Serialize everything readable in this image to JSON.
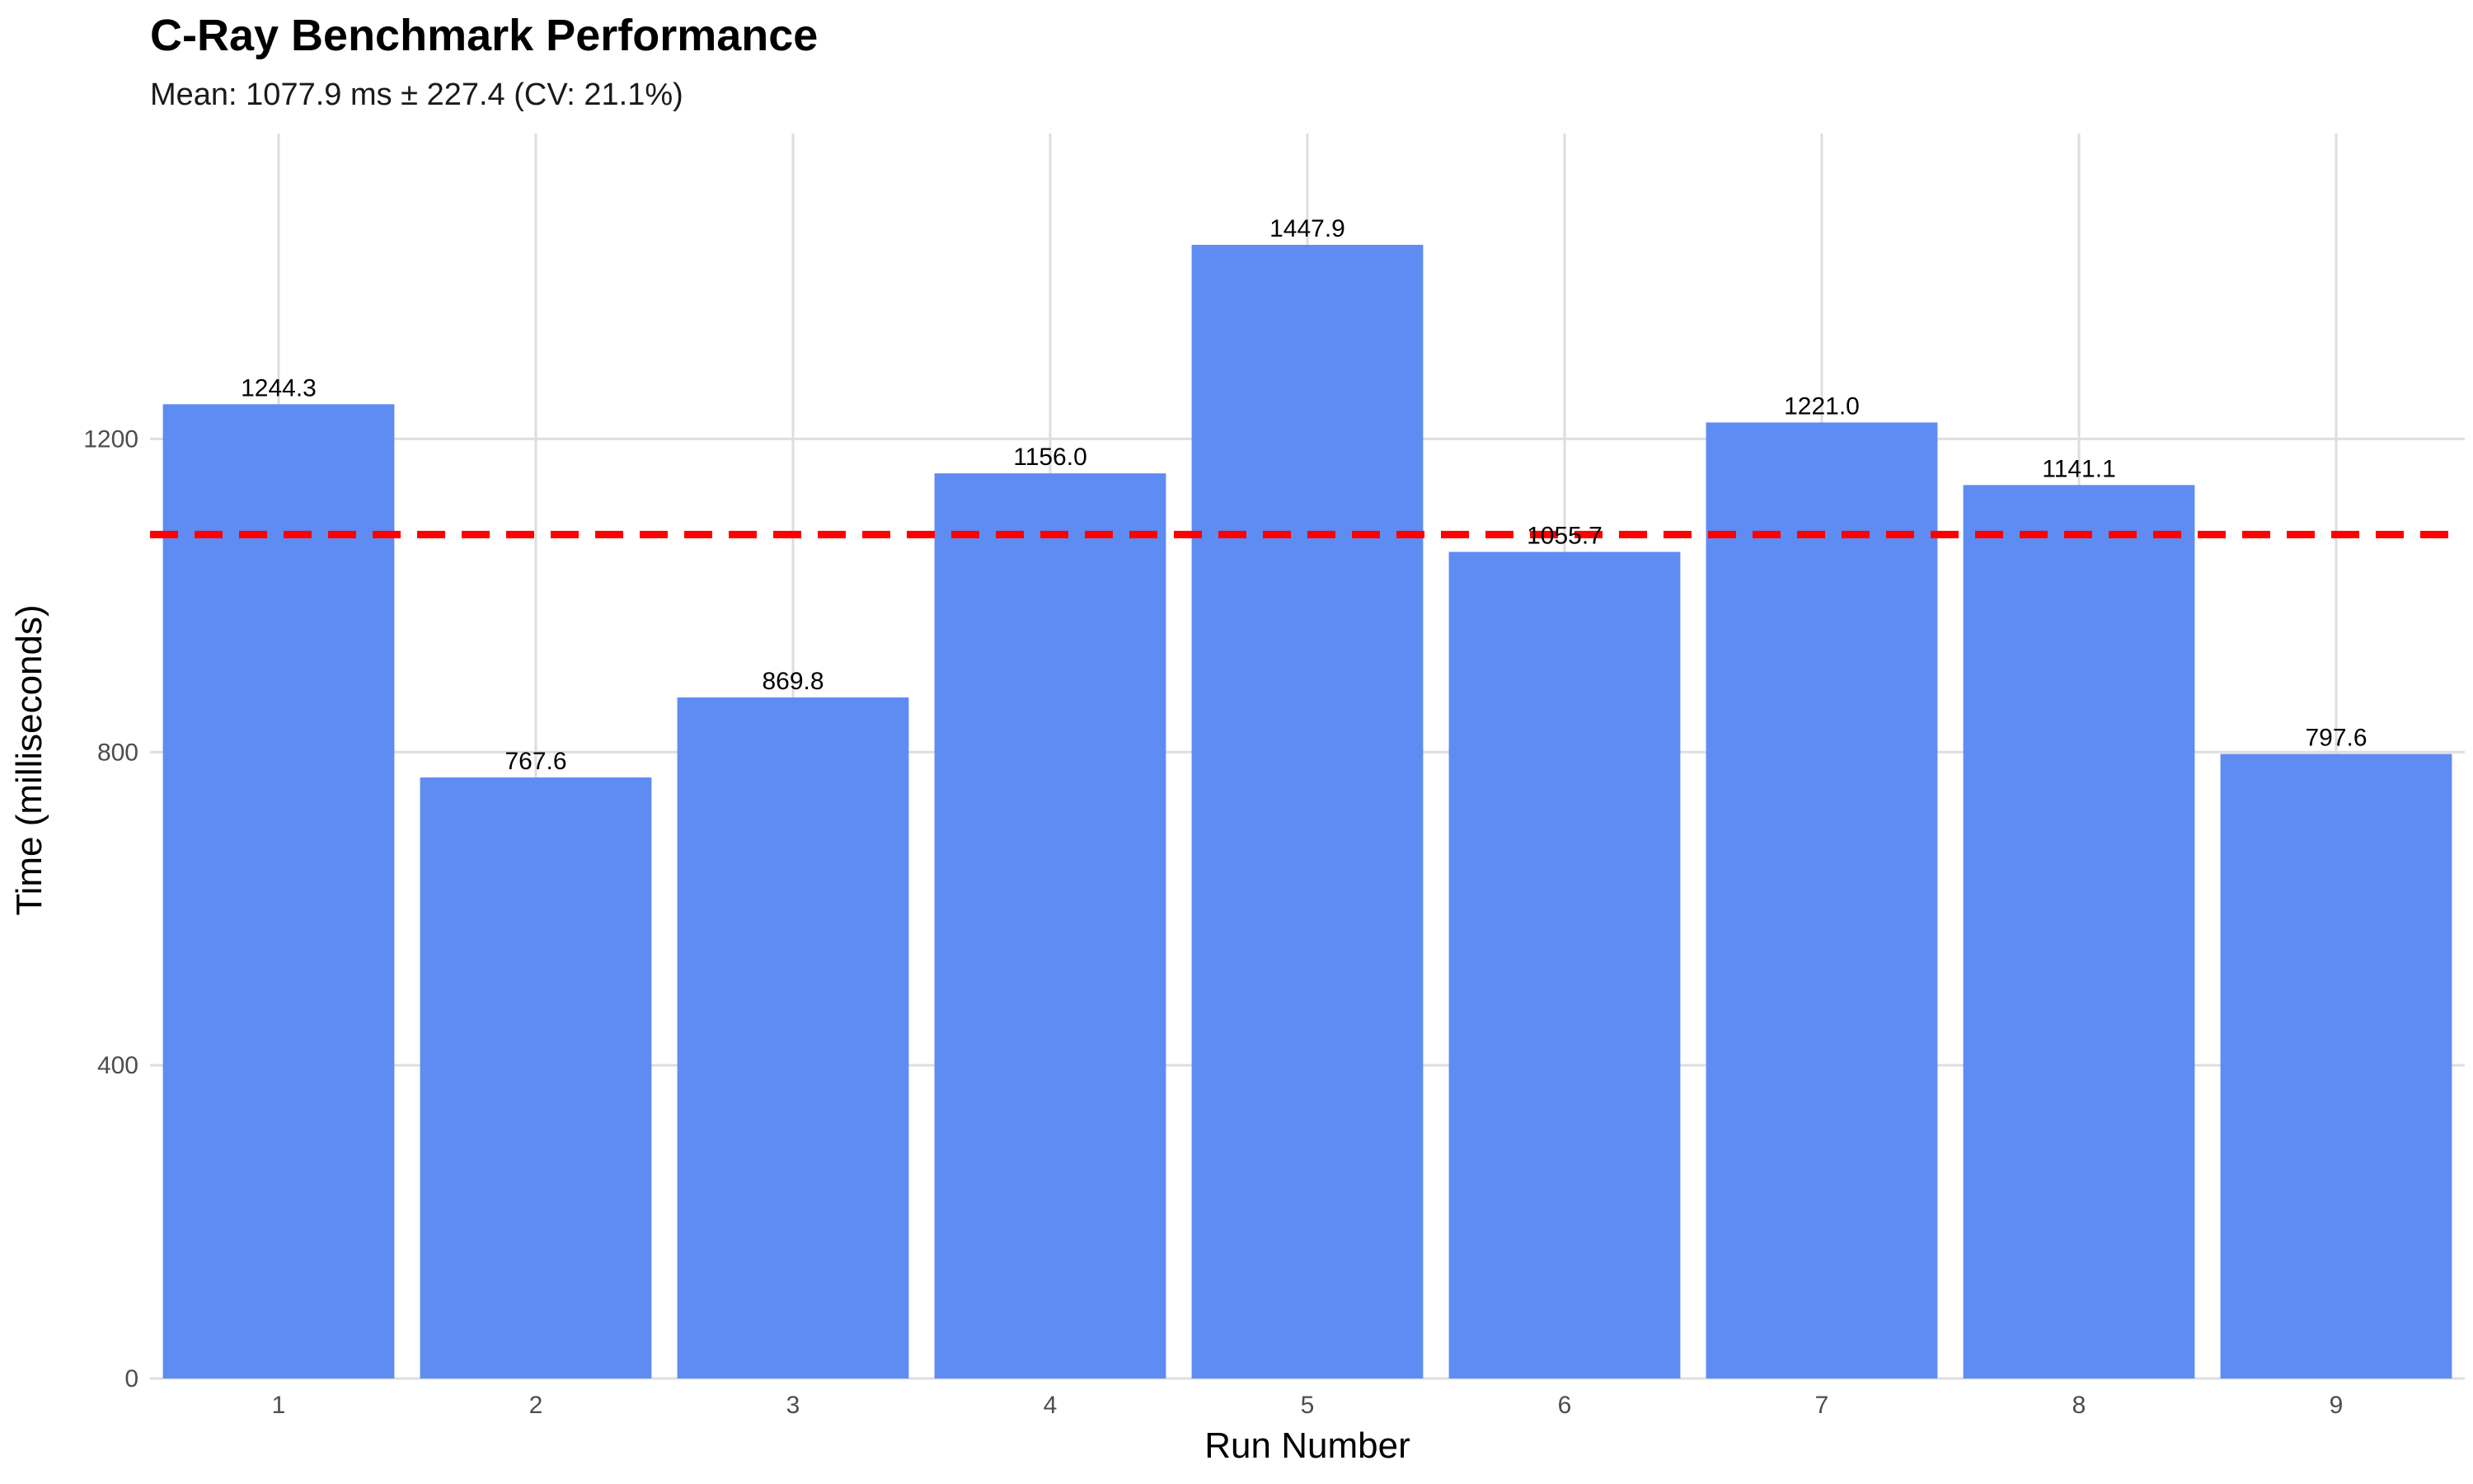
{
  "chart_data": {
    "type": "bar",
    "title": "C-Ray Benchmark Performance",
    "subtitle": "Mean: 1077.9 ms ± 227.4 (CV: 21.1%)",
    "xlabel": "Run Number",
    "ylabel": "Time (milliseconds)",
    "categories": [
      "1",
      "2",
      "3",
      "4",
      "5",
      "6",
      "7",
      "8",
      "9"
    ],
    "values": [
      1244.3,
      767.6,
      869.8,
      1156.0,
      1447.9,
      1055.7,
      1221.0,
      1141.1,
      797.6
    ],
    "data_labels": [
      "1244.3",
      "767.6",
      "869.8",
      "1156.0",
      "1447.9",
      "1055.7",
      "1221.0",
      "1141.1",
      "797.6"
    ],
    "y_ticks": [
      0,
      400,
      800,
      1200
    ],
    "ylim": [
      0,
      1590
    ],
    "mean_line": 1077.9,
    "grid": true,
    "legend": "none",
    "colors": {
      "bar": "#5b8af2",
      "mean_line": "#ff0000",
      "grid": "#dedede"
    }
  }
}
